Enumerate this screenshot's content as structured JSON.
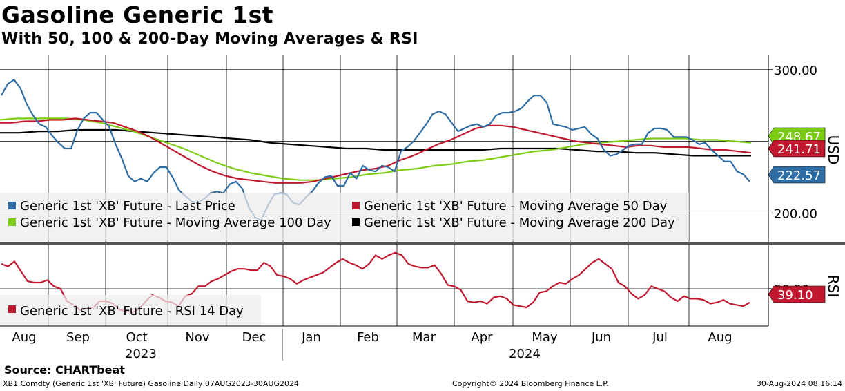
{
  "header": {
    "title": "Gasoline Generic 1st",
    "subtitle": "With 50, 100 & 200-Day Moving Averages & RSI"
  },
  "chart_data": [
    {
      "type": "line",
      "name": "price-panel",
      "ylabel": "USD",
      "ylim": [
        180,
        310
      ],
      "yticks": [
        {
          "v": 300,
          "label": "300.00"
        },
        {
          "v": 200,
          "label": "200.00"
        }
      ],
      "grid": true,
      "legend": [
        {
          "label": "Generic 1st 'XB' Future - Last Price",
          "color": "#2e6da4"
        },
        {
          "label": "Generic 1st 'XB' Future - Moving Average 50 Day",
          "color": "#c0182f"
        },
        {
          "label": "Generic 1st 'XB' Future - Moving Average 100 Day",
          "color": "#7ccc14"
        },
        {
          "label": "Generic 1st 'XB' Future - Moving Average 200 Day",
          "color": "#000000"
        }
      ],
      "end_labels": [
        {
          "text": "248.67",
          "value": 248.67,
          "color": "#7ccc14"
        },
        {
          "text": "241.71",
          "value": 241.71,
          "color": "#c0182f"
        },
        {
          "text": "222.57",
          "value": 222.57,
          "color": "#2e6da4"
        }
      ],
      "series": [
        {
          "name": "Last Price",
          "color": "#2e6da4",
          "values": [
            282,
            290,
            293,
            287,
            276,
            268,
            262,
            260,
            254,
            249,
            245,
            245,
            258,
            266,
            270,
            270,
            265,
            260,
            248,
            238,
            226,
            222,
            224,
            222,
            228,
            232,
            232,
            225,
            216,
            212,
            208,
            207,
            210,
            214,
            215,
            214,
            220,
            222,
            217,
            204,
            197,
            195,
            205,
            213,
            214,
            213,
            207,
            206,
            211,
            215,
            221,
            225,
            226,
            219,
            219,
            228,
            224,
            233,
            230,
            229,
            233,
            232,
            229,
            243,
            246,
            250,
            256,
            262,
            269,
            271,
            269,
            263,
            257,
            259,
            261,
            262,
            260,
            262,
            268,
            270,
            270,
            271,
            273,
            278,
            282,
            282,
            277,
            262,
            261,
            260,
            258,
            259,
            260,
            255,
            252,
            244,
            240,
            241,
            244,
            247,
            248,
            248,
            256,
            259,
            259,
            258,
            253,
            253,
            253,
            251,
            248,
            249,
            244,
            240,
            236,
            236,
            229,
            227,
            222
          ]
        },
        {
          "name": "Moving Average 50 Day",
          "color": "#c0182f",
          "values": [
            263,
            263,
            264,
            264,
            265,
            265,
            266,
            265,
            264,
            263,
            260,
            257,
            253,
            248,
            243,
            238,
            233,
            229,
            226,
            224,
            223,
            222,
            221,
            221,
            221,
            222,
            224,
            226,
            228,
            230,
            231,
            233,
            237,
            240,
            244,
            248,
            251,
            255,
            259,
            261,
            261,
            260,
            258,
            256,
            254,
            252,
            250,
            249,
            248,
            247,
            246,
            247,
            247,
            246,
            246,
            246,
            245,
            244,
            244,
            243,
            242
          ]
        },
        {
          "name": "Moving Average 100 Day",
          "color": "#7ccc14",
          "values": [
            265,
            266,
            266,
            266,
            266,
            265,
            263,
            260,
            257,
            253,
            249,
            245,
            240,
            235,
            231,
            228,
            226,
            224,
            223,
            223,
            224,
            225,
            227,
            228,
            230,
            231,
            233,
            234,
            236,
            237,
            239,
            241,
            243,
            244,
            246,
            248,
            249,
            250,
            251,
            252,
            252,
            252,
            251,
            251,
            250,
            249
          ]
        },
        {
          "name": "Moving Average 200 Day",
          "color": "#000000",
          "values": [
            256,
            256,
            257,
            257,
            258,
            258,
            258,
            257,
            256,
            255,
            254,
            253,
            252,
            251,
            249,
            248,
            247,
            246,
            245,
            245,
            244,
            244,
            244,
            244,
            244,
            244,
            245,
            245,
            245,
            245,
            244,
            243,
            243,
            242,
            242,
            241,
            240,
            240,
            240,
            240
          ]
        }
      ]
    },
    {
      "type": "line",
      "name": "rsi-panel",
      "ylabel": "RSI",
      "ylim": [
        20,
        85
      ],
      "yticks": [
        {
          "v": 50,
          "label": "50.00"
        }
      ],
      "legend": [
        {
          "label": "Generic 1st 'XB' Future - RSI 14 Day",
          "color": "#c0182f"
        }
      ],
      "end_labels": [
        {
          "text": "39.10",
          "value": 39.1,
          "color": "#c0182f"
        }
      ],
      "series": [
        {
          "name": "RSI 14 Day",
          "color": "#c0182f",
          "values": [
            70,
            68,
            72,
            64,
            56,
            55,
            55,
            57,
            52,
            50,
            40,
            37,
            33,
            34,
            35,
            40,
            40,
            38,
            33,
            32,
            31,
            34,
            40,
            45,
            43,
            40,
            39,
            36,
            44,
            46,
            52,
            52,
            56,
            58,
            61,
            64,
            66,
            66,
            65,
            65,
            71,
            68,
            61,
            60,
            58,
            54,
            57,
            59,
            61,
            63,
            67,
            71,
            74,
            71,
            69,
            66,
            70,
            77,
            74,
            77,
            79,
            77,
            70,
            68,
            67,
            67,
            69,
            62,
            53,
            52,
            49,
            40,
            39,
            40,
            38,
            43,
            44,
            42,
            37,
            36,
            35,
            39,
            47,
            48,
            52,
            55,
            54,
            58,
            61,
            66,
            71,
            74,
            70,
            66,
            55,
            52,
            46,
            42,
            45,
            52,
            50,
            48,
            43,
            40,
            44,
            42,
            42,
            41,
            38,
            39,
            41,
            38,
            37,
            36,
            39
          ]
        }
      ]
    }
  ],
  "xaxis": {
    "months": [
      "Aug",
      "Sep",
      "Oct",
      "Nov",
      "Dec",
      "Jan",
      "Feb",
      "Mar",
      "Apr",
      "May",
      "Jun",
      "Jul",
      "Aug"
    ],
    "years": [
      "2023",
      "2024"
    ]
  },
  "footer": {
    "source": "Source: CHARTbeat",
    "left": "XB1 Comdty (Generic 1st 'XB' Future) Gasoline  Daily 07AUG2023-30AUG2024",
    "center": "Copyright© 2024 Bloomberg Finance L.P.",
    "right": "30-Aug-2024 08:16:14"
  }
}
